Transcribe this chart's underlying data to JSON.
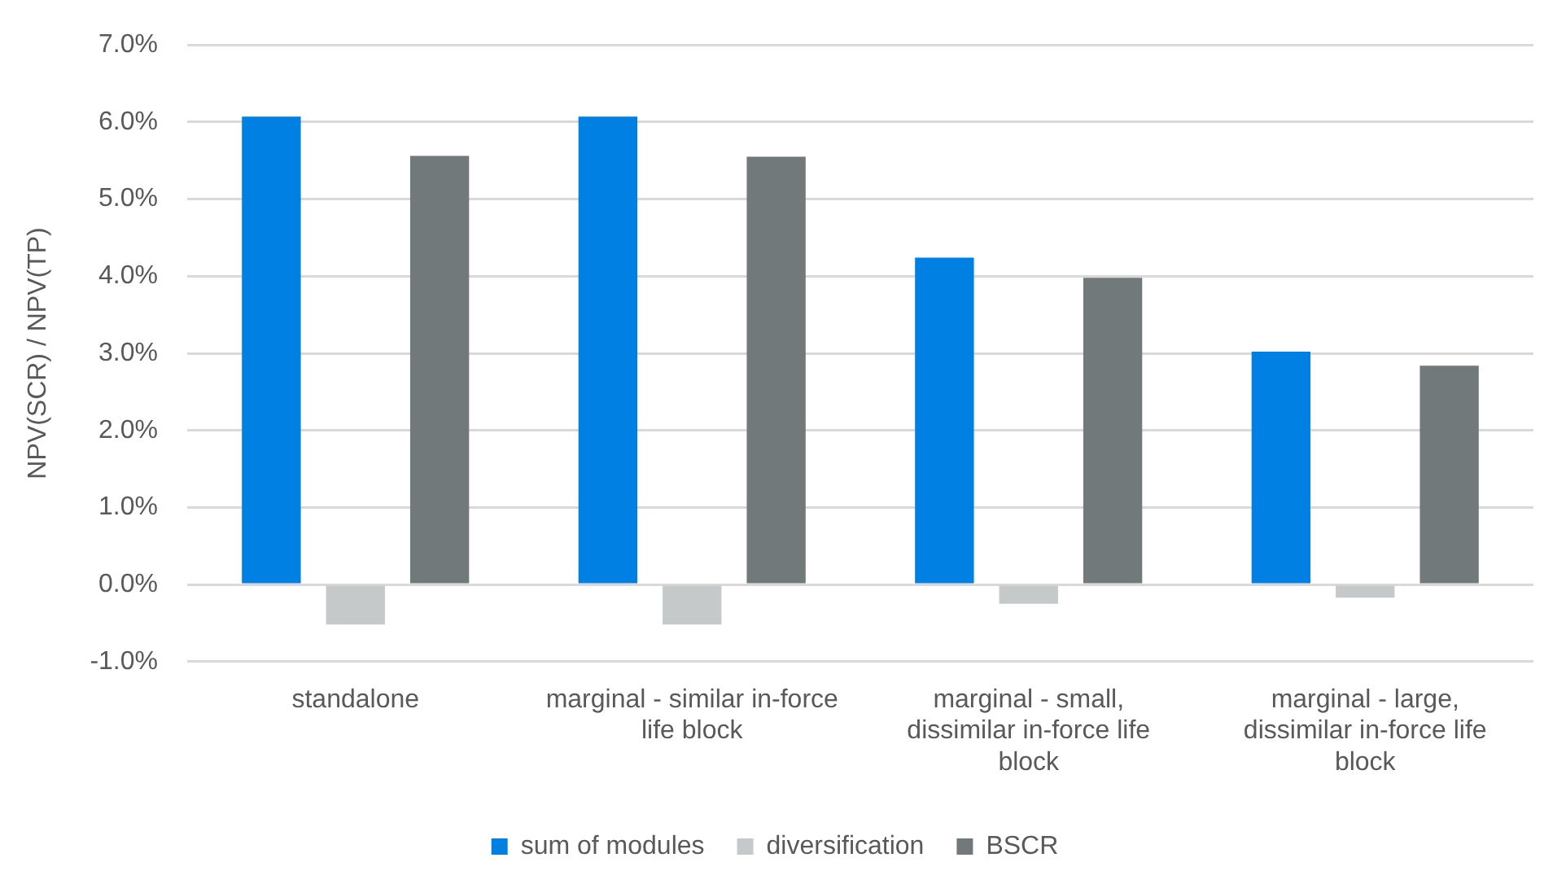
{
  "chart_data": {
    "type": "bar",
    "ylabel": "NPV(SCR) / NPV(TP)",
    "categories": [
      "standalone",
      "marginal - similar in-force life block",
      "marginal - small, dissimilar in-force life block",
      "marginal - large, dissimilar in-force life block"
    ],
    "series": [
      {
        "name": "sum of modules",
        "color": "#0080e3",
        "values": [
          6.07,
          6.07,
          4.24,
          3.02
        ]
      },
      {
        "name": "diversification",
        "color": "#c6c9ca",
        "values": [
          -0.52,
          -0.52,
          -0.25,
          -0.17
        ]
      },
      {
        "name": "BSCR",
        "color": "#72797b",
        "values": [
          5.56,
          5.55,
          3.98,
          2.84
        ]
      }
    ],
    "ylim": [
      -1,
      7
    ],
    "yticks": [
      {
        "value": -1,
        "label": "-1.0%"
      },
      {
        "value": 0,
        "label": "0.0%"
      },
      {
        "value": 1,
        "label": "1.0%"
      },
      {
        "value": 2,
        "label": "2.0%"
      },
      {
        "value": 3,
        "label": "3.0%"
      },
      {
        "value": 4,
        "label": "4.0%"
      },
      {
        "value": 5,
        "label": "5.0%"
      },
      {
        "value": 6,
        "label": "6.0%"
      },
      {
        "value": 7,
        "label": "7.0%"
      }
    ],
    "grid": "y",
    "legend": "bottom"
  }
}
